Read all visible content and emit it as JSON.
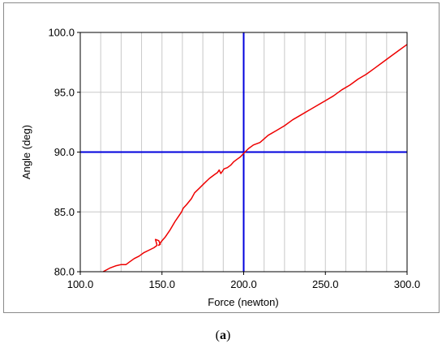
{
  "chart_data": {
    "type": "line",
    "xlabel": "Force (newton)",
    "ylabel": "Angle (deg)",
    "xlim": [
      100.0,
      300.0
    ],
    "ylim": [
      80.0,
      100.0
    ],
    "x_ticks": [
      "100.0",
      "150.0",
      "200.0",
      "250.0",
      "300.0"
    ],
    "y_ticks": [
      "80.0",
      "85.0",
      "90.0",
      "95.0",
      "100.0"
    ],
    "x_tick_values": [
      100,
      150,
      200,
      250,
      300
    ],
    "y_tick_values": [
      80,
      85,
      90,
      95,
      100
    ],
    "x_minor_grid": [
      112.5,
      125,
      137.5,
      162.5,
      175,
      187.5,
      212.5,
      225,
      237.5,
      262.5,
      275,
      287.5
    ],
    "grid": true,
    "reference_lines": [
      {
        "orientation": "vertical",
        "value": 200.0,
        "color": "#0000dd"
      },
      {
        "orientation": "horizontal",
        "value": 90.0,
        "color": "#0000dd"
      }
    ],
    "series": [
      {
        "color": "#ee0000",
        "x": [
          114,
          118,
          122,
          125,
          128,
          130,
          133,
          136,
          139,
          142,
          145,
          147,
          146,
          148,
          149,
          148,
          150,
          152,
          155,
          158,
          160,
          162,
          163,
          165,
          168,
          170,
          173,
          176,
          179,
          182,
          184,
          185,
          186,
          188,
          190,
          192,
          194,
          196,
          198,
          200,
          203,
          206,
          210,
          215,
          220,
          225,
          230,
          235,
          240,
          245,
          250,
          255,
          260,
          265,
          270,
          275,
          280,
          285,
          290,
          295,
          300
        ],
        "y": [
          80.0,
          80.3,
          80.5,
          80.6,
          80.6,
          80.8,
          81.1,
          81.3,
          81.6,
          81.8,
          82.0,
          82.2,
          82.7,
          82.6,
          82.3,
          82.2,
          82.6,
          82.9,
          83.5,
          84.2,
          84.6,
          85.0,
          85.3,
          85.6,
          86.1,
          86.6,
          87.0,
          87.4,
          87.8,
          88.1,
          88.3,
          88.5,
          88.2,
          88.6,
          88.7,
          88.9,
          89.2,
          89.4,
          89.6,
          89.9,
          90.3,
          90.6,
          90.8,
          91.4,
          91.8,
          92.2,
          92.7,
          93.1,
          93.5,
          93.9,
          94.3,
          94.7,
          95.2,
          95.6,
          96.1,
          96.5,
          97.0,
          97.5,
          98.0,
          98.5,
          99.0
        ]
      }
    ]
  },
  "caption": {
    "label": "a"
  }
}
